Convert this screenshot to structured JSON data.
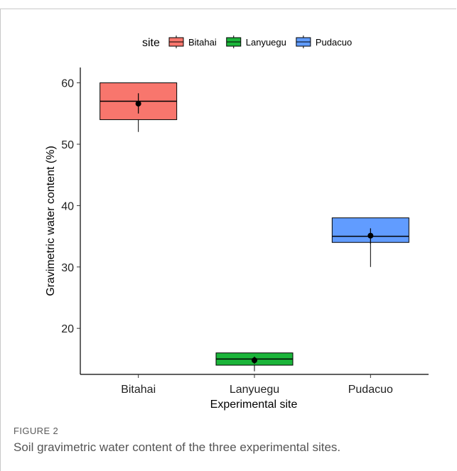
{
  "chart_data": {
    "type": "boxplot",
    "xlabel": "Experimental site",
    "ylabel": "Gravimetric water content (%)",
    "legend_title": "site",
    "legend_position": "top",
    "ylim": [
      12.5,
      62.5
    ],
    "yticks": [
      20,
      30,
      40,
      50,
      60
    ],
    "categories": [
      "Bitahai",
      "Lanyuegu",
      "Pudacuo"
    ],
    "series": [
      {
        "name": "Bitahai",
        "color": "#f8766d",
        "q1": 54,
        "median": 57,
        "q3": 60,
        "whisker_low": 52,
        "whisker_high": 60,
        "mean": 56.6,
        "mean_err_low": 55,
        "mean_err_high": 58.3
      },
      {
        "name": "Lanyuegu",
        "color": "#1bb53a",
        "q1": 14,
        "median": 15,
        "q3": 16,
        "whisker_low": 13,
        "whisker_high": 16,
        "mean": 14.8,
        "mean_err_low": 14.2,
        "mean_err_high": 15.4
      },
      {
        "name": "Pudacuo",
        "color": "#619cff",
        "q1": 34,
        "median": 35,
        "q3": 38,
        "whisker_low": 30,
        "whisker_high": 38,
        "mean": 35.1,
        "mean_err_low": 33.8,
        "mean_err_high": 36.3
      }
    ]
  },
  "figure": {
    "label": "FIGURE 2",
    "caption": "Soil gravimetric water content of the three experimental sites."
  }
}
